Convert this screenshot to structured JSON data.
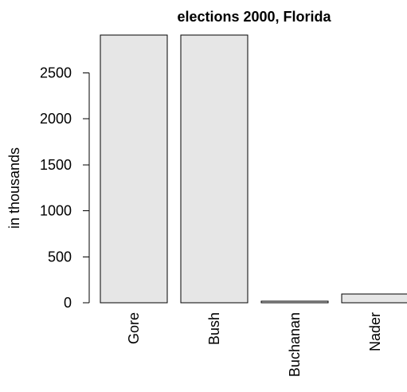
{
  "chart_data": {
    "type": "bar",
    "title": "elections 2000, Florida",
    "xlabel": "",
    "ylabel": "in thousands",
    "categories": [
      "Gore",
      "Bush",
      "Buchanan",
      "Nader"
    ],
    "values": [
      2912,
      2912,
      18,
      97
    ],
    "ylim": [
      0,
      2912
    ],
    "yticks": [
      0,
      500,
      1000,
      1500,
      2000,
      2500
    ],
    "legend": "none",
    "grid": false,
    "colors": {
      "bar_fill": "#e6e6e6",
      "bar_stroke": "#000000",
      "axis": "#000000",
      "text": "#000000",
      "background": "#ffffff"
    }
  }
}
